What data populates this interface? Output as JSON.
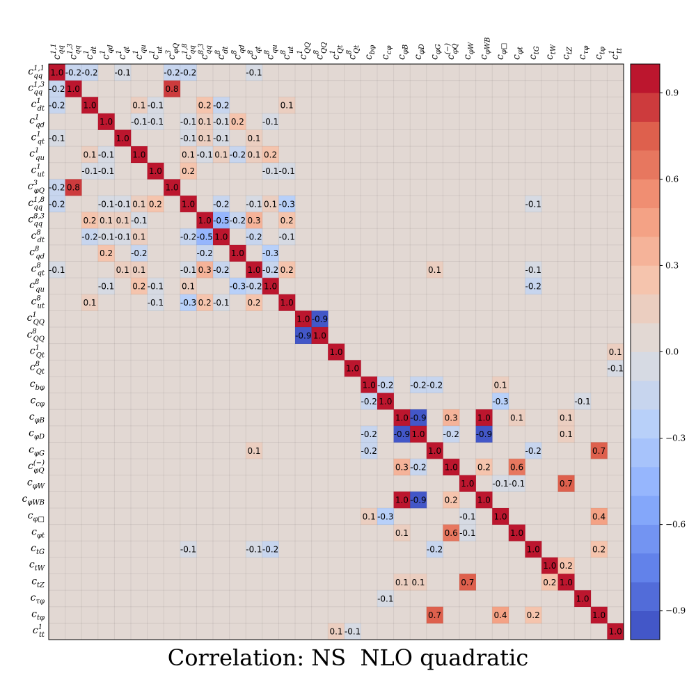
{
  "chart_data": {
    "type": "heatmap",
    "title": "Correlation: NS  NLO quadratic",
    "labels": [
      "c_qq^1,1",
      "c_qq^1,3",
      "c_dt^1",
      "c_qd^1",
      "c_qt^1",
      "c_qu^1",
      "c_ut^1",
      "c_φQ^3",
      "c_qq^1,8",
      "c_qq^8,3",
      "c_dt^8",
      "c_qd^8",
      "c_qt^8",
      "c_qu^8",
      "c_ut^8",
      "c_QQ^1",
      "c_QQ^8",
      "c_Qt^1",
      "c_Qt^8",
      "c_bφ",
      "c_cφ",
      "c_φB",
      "c_φD",
      "c_φG",
      "c_φQ^(−)",
      "c_φW",
      "c_φWB",
      "c_φ□",
      "c_φt",
      "c_tG",
      "c_tW",
      "c_tZ",
      "c_τφ",
      "c_tφ",
      "c_tt^1"
    ],
    "zlim": [
      -1,
      1
    ],
    "colorbar_ticks": [
      0.9,
      0.6,
      0.3,
      0.0,
      -0.3,
      -0.6,
      -0.9
    ],
    "colorbar_tick_labels": [
      "0.9",
      "0.6",
      "0.3",
      "0.0",
      "−0.3",
      "−0.6",
      "−0.9"
    ],
    "colorbar_steps": 20,
    "cells": [
      [
        0,
        1,
        -0.2
      ],
      [
        0,
        2,
        -0.2
      ],
      [
        0,
        4,
        -0.1
      ],
      [
        0,
        7,
        -0.2
      ],
      [
        0,
        8,
        -0.2
      ],
      [
        0,
        12,
        -0.1
      ],
      [
        1,
        0,
        -0.2
      ],
      [
        1,
        7,
        0.8
      ],
      [
        2,
        0,
        -0.2
      ],
      [
        2,
        5,
        0.1
      ],
      [
        2,
        6,
        -0.1
      ],
      [
        2,
        9,
        0.2
      ],
      [
        2,
        10,
        -0.2
      ],
      [
        2,
        14,
        0.1
      ],
      [
        3,
        5,
        -0.1
      ],
      [
        3,
        6,
        -0.1
      ],
      [
        3,
        8,
        -0.1
      ],
      [
        3,
        9,
        0.1
      ],
      [
        3,
        10,
        -0.1
      ],
      [
        3,
        11,
        0.2
      ],
      [
        3,
        13,
        -0.1
      ],
      [
        4,
        0,
        -0.1
      ],
      [
        4,
        8,
        -0.1
      ],
      [
        4,
        9,
        0.1
      ],
      [
        4,
        10,
        -0.1
      ],
      [
        4,
        12,
        0.1
      ],
      [
        5,
        2,
        0.1
      ],
      [
        5,
        3,
        -0.1
      ],
      [
        5,
        8,
        0.1
      ],
      [
        5,
        9,
        -0.1
      ],
      [
        5,
        10,
        0.1
      ],
      [
        5,
        11,
        -0.2
      ],
      [
        5,
        12,
        0.1
      ],
      [
        5,
        13,
        0.2
      ],
      [
        6,
        2,
        -0.1
      ],
      [
        6,
        3,
        -0.1
      ],
      [
        6,
        8,
        0.2
      ],
      [
        6,
        13,
        -0.1
      ],
      [
        6,
        14,
        -0.1
      ],
      [
        7,
        0,
        -0.2
      ],
      [
        7,
        1,
        0.8
      ],
      [
        8,
        0,
        -0.2
      ],
      [
        8,
        3,
        -0.1
      ],
      [
        8,
        4,
        -0.1
      ],
      [
        8,
        5,
        0.1
      ],
      [
        8,
        6,
        0.2
      ],
      [
        8,
        10,
        -0.2
      ],
      [
        8,
        12,
        -0.1
      ],
      [
        8,
        13,
        0.1
      ],
      [
        8,
        14,
        -0.3
      ],
      [
        8,
        29,
        -0.1
      ],
      [
        9,
        2,
        0.2
      ],
      [
        9,
        3,
        0.1
      ],
      [
        9,
        4,
        0.1
      ],
      [
        9,
        5,
        -0.1
      ],
      [
        9,
        10,
        -0.5
      ],
      [
        9,
        11,
        -0.2
      ],
      [
        9,
        12,
        0.3
      ],
      [
        9,
        14,
        0.2
      ],
      [
        10,
        2,
        -0.2
      ],
      [
        10,
        3,
        -0.1
      ],
      [
        10,
        4,
        -0.1
      ],
      [
        10,
        5,
        0.1
      ],
      [
        10,
        8,
        -0.2
      ],
      [
        10,
        9,
        -0.5
      ],
      [
        10,
        12,
        -0.2
      ],
      [
        10,
        14,
        -0.1
      ],
      [
        11,
        3,
        0.2
      ],
      [
        11,
        5,
        -0.2
      ],
      [
        11,
        9,
        -0.2
      ],
      [
        11,
        13,
        -0.3
      ],
      [
        12,
        0,
        -0.1
      ],
      [
        12,
        4,
        0.1
      ],
      [
        12,
        5,
        0.1
      ],
      [
        12,
        8,
        -0.1
      ],
      [
        12,
        9,
        0.3
      ],
      [
        12,
        10,
        -0.2
      ],
      [
        12,
        13,
        -0.2
      ],
      [
        12,
        14,
        0.2
      ],
      [
        12,
        23,
        0.1
      ],
      [
        12,
        29,
        -0.1
      ],
      [
        13,
        3,
        -0.1
      ],
      [
        13,
        5,
        0.2
      ],
      [
        13,
        6,
        -0.1
      ],
      [
        13,
        8,
        0.1
      ],
      [
        13,
        11,
        -0.3
      ],
      [
        13,
        12,
        -0.2
      ],
      [
        13,
        29,
        -0.2
      ],
      [
        14,
        2,
        0.1
      ],
      [
        14,
        6,
        -0.1
      ],
      [
        14,
        8,
        -0.3
      ],
      [
        14,
        9,
        0.2
      ],
      [
        14,
        10,
        -0.1
      ],
      [
        14,
        12,
        0.2
      ],
      [
        15,
        16,
        -0.9
      ],
      [
        16,
        15,
        -0.9
      ],
      [
        17,
        34,
        0.1
      ],
      [
        18,
        34,
        -0.1
      ],
      [
        19,
        20,
        -0.2
      ],
      [
        19,
        22,
        -0.2
      ],
      [
        19,
        23,
        -0.2
      ],
      [
        19,
        27,
        0.1
      ],
      [
        20,
        19,
        -0.2
      ],
      [
        20,
        27,
        -0.3
      ],
      [
        20,
        32,
        -0.1
      ],
      [
        21,
        22,
        -0.9
      ],
      [
        21,
        24,
        0.3
      ],
      [
        21,
        26,
        1.0
      ],
      [
        21,
        28,
        0.1
      ],
      [
        21,
        31,
        0.1
      ],
      [
        22,
        19,
        -0.2
      ],
      [
        22,
        21,
        -0.9
      ],
      [
        22,
        24,
        -0.2
      ],
      [
        22,
        26,
        -0.9
      ],
      [
        22,
        31,
        0.1
      ],
      [
        23,
        12,
        0.1
      ],
      [
        23,
        19,
        -0.2
      ],
      [
        23,
        29,
        -0.2
      ],
      [
        23,
        33,
        0.7
      ],
      [
        24,
        21,
        0.3
      ],
      [
        24,
        22,
        -0.2
      ],
      [
        24,
        26,
        0.2
      ],
      [
        24,
        28,
        0.6
      ],
      [
        25,
        27,
        -0.1
      ],
      [
        25,
        28,
        -0.1
      ],
      [
        25,
        31,
        0.7
      ],
      [
        26,
        21,
        1.0
      ],
      [
        26,
        22,
        -0.9
      ],
      [
        26,
        24,
        0.2
      ],
      [
        27,
        19,
        0.1
      ],
      [
        27,
        20,
        -0.3
      ],
      [
        27,
        25,
        -0.1
      ],
      [
        27,
        33,
        0.4
      ],
      [
        28,
        21,
        0.1
      ],
      [
        28,
        24,
        0.6
      ],
      [
        28,
        25,
        -0.1
      ],
      [
        29,
        8,
        -0.1
      ],
      [
        29,
        12,
        -0.1
      ],
      [
        29,
        13,
        -0.2
      ],
      [
        29,
        23,
        -0.2
      ],
      [
        29,
        33,
        0.2
      ],
      [
        30,
        31,
        0.2
      ],
      [
        31,
        21,
        0.1
      ],
      [
        31,
        22,
        0.1
      ],
      [
        31,
        25,
        0.7
      ],
      [
        31,
        30,
        0.2
      ],
      [
        32,
        20,
        -0.1
      ],
      [
        33,
        23,
        0.7
      ],
      [
        33,
        27,
        0.4
      ],
      [
        33,
        29,
        0.2
      ],
      [
        34,
        17,
        0.1
      ],
      [
        34,
        18,
        -0.1
      ]
    ]
  }
}
